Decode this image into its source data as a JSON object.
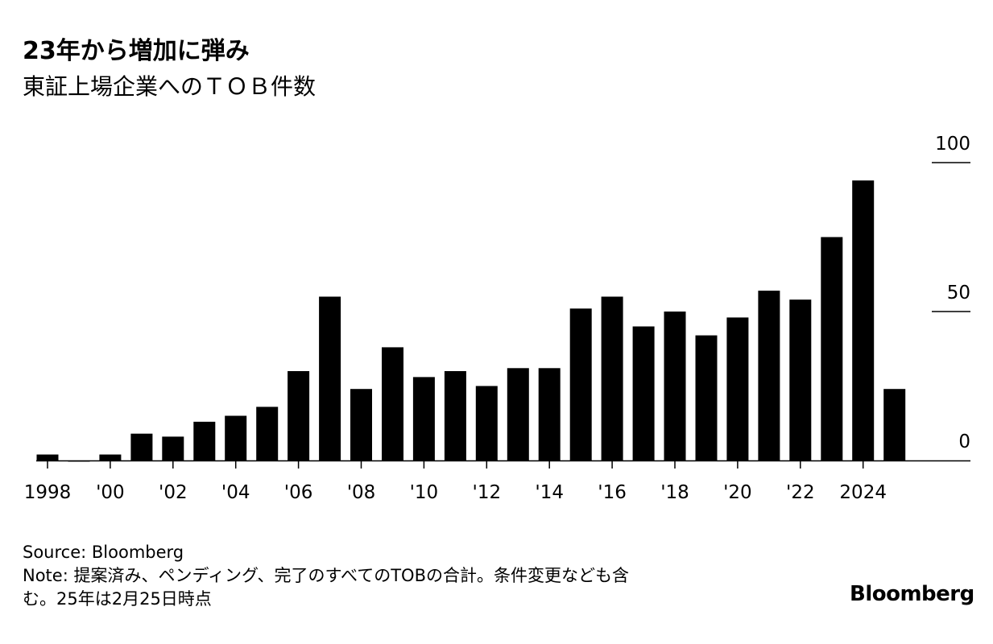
{
  "title": "23年から増加に弾み",
  "subtitle": "東証上場企業へのＴＯＢ件数",
  "source": "Source: Bloomberg",
  "note_line1": "Note: 提案済み、ペンディング、完了のすべてのTOBの合計。条件変更なども含",
  "note_line2": "む。25年は2月25日時点",
  "logo": "Bloomberg",
  "chart_data": {
    "type": "bar",
    "title": "23年から増加に弾み",
    "subtitle": "東証上場企業へのＴＯＢ件数",
    "x": [
      1998,
      1999,
      2000,
      2001,
      2002,
      2003,
      2004,
      2005,
      2006,
      2007,
      2008,
      2009,
      2010,
      2011,
      2012,
      2013,
      2014,
      2015,
      2016,
      2017,
      2018,
      2019,
      2020,
      2021,
      2022,
      2023,
      2024,
      2025
    ],
    "values": [
      2,
      0,
      2,
      9,
      8,
      13,
      15,
      18,
      30,
      55,
      24,
      38,
      28,
      30,
      25,
      31,
      31,
      51,
      55,
      45,
      50,
      42,
      48,
      57,
      54,
      75,
      94,
      24
    ],
    "x_tick_labels": [
      {
        "x": 1998,
        "label": "1998"
      },
      {
        "x": 2000,
        "label": "'00"
      },
      {
        "x": 2002,
        "label": "'02"
      },
      {
        "x": 2004,
        "label": "'04"
      },
      {
        "x": 2006,
        "label": "'06"
      },
      {
        "x": 2008,
        "label": "'08"
      },
      {
        "x": 2010,
        "label": "'10"
      },
      {
        "x": 2012,
        "label": "'12"
      },
      {
        "x": 2014,
        "label": "'14"
      },
      {
        "x": 2016,
        "label": "'16"
      },
      {
        "x": 2018,
        "label": "'18"
      },
      {
        "x": 2020,
        "label": "'20"
      },
      {
        "x": 2022,
        "label": "'22"
      },
      {
        "x": 2024,
        "label": "2024"
      }
    ],
    "y_ticks": [
      0,
      50,
      100
    ],
    "ylim": [
      0,
      100
    ],
    "y_axis_side": "right",
    "grid": false,
    "bar_color": "#000000"
  }
}
